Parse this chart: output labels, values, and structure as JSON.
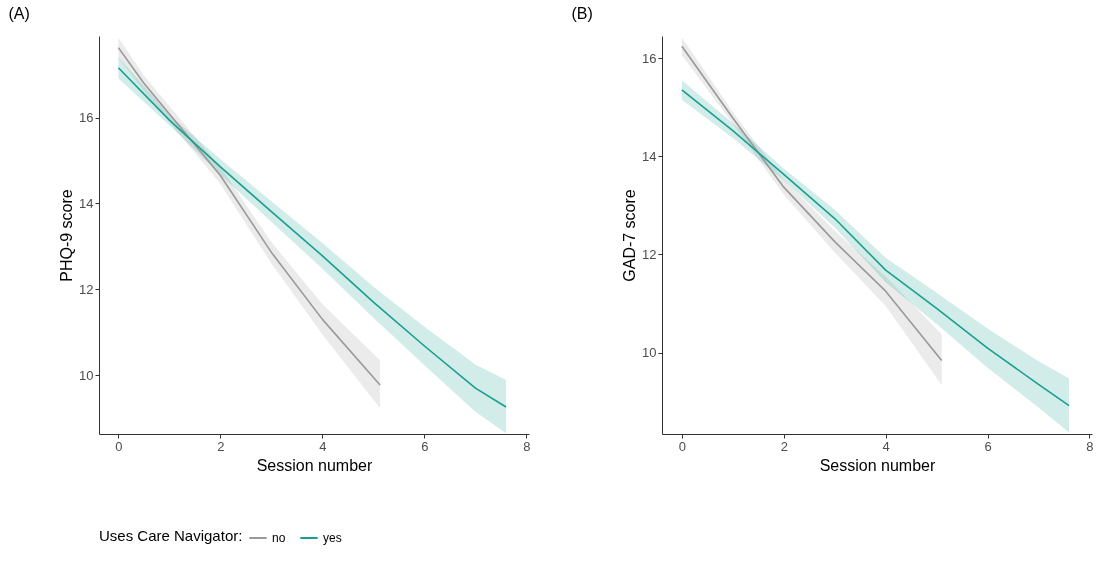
{
  "chart_data": [
    {
      "type": "line",
      "title": "(A)",
      "xlabel": "Session number",
      "ylabel": "PHQ-9 score",
      "xlim": [
        -0.38,
        8.05
      ],
      "ylim": [
        8.63,
        17.9
      ],
      "xticks": [
        0,
        2,
        4,
        6,
        8
      ],
      "yticks": [
        10,
        12,
        14,
        16
      ],
      "grid": false,
      "legend": "bottom",
      "legend_title": "Uses Care Navigator:",
      "series": [
        {
          "name": "no",
          "color": "#999999",
          "x": [
            0,
            0.5,
            2,
            3,
            4,
            5.13
          ],
          "values": [
            17.63,
            16.8,
            14.65,
            12.86,
            11.3,
            9.77
          ],
          "lower": [
            17.4,
            16.62,
            14.45,
            12.6,
            10.95,
            9.23
          ],
          "upper": [
            17.86,
            16.98,
            14.85,
            13.1,
            11.65,
            10.35
          ]
        },
        {
          "name": "yes",
          "color": "#1a9e8f",
          "x": [
            0,
            1,
            2,
            3,
            4,
            5,
            6,
            7,
            7.6
          ],
          "values": [
            17.16,
            15.94,
            14.85,
            13.81,
            12.78,
            11.7,
            10.68,
            9.7,
            9.26
          ],
          "lower": [
            16.91,
            15.82,
            14.67,
            13.57,
            12.48,
            11.34,
            10.23,
            9.15,
            8.65
          ],
          "upper": [
            17.41,
            16.06,
            15.03,
            14.05,
            13.08,
            12.06,
            11.13,
            10.25,
            9.89
          ]
        }
      ]
    },
    {
      "type": "line",
      "title": "(B)",
      "xlabel": "Session number",
      "ylabel": "GAD-7 score",
      "xlim": [
        -0.39,
        8.05
      ],
      "ylim": [
        8.34,
        16.45
      ],
      "xticks": [
        0,
        2,
        4,
        6,
        8
      ],
      "yticks": [
        10,
        12,
        14,
        16
      ],
      "grid": false,
      "series": [
        {
          "color": "#999999",
          "x": [
            0,
            1,
            2,
            3,
            4,
            5.1
          ],
          "values": [
            16.24,
            14.78,
            13.37,
            12.26,
            11.25,
            9.84
          ],
          "lower": [
            16.06,
            14.66,
            13.22,
            12.04,
            10.95,
            9.34
          ],
          "upper": [
            16.42,
            14.9,
            13.52,
            12.48,
            11.55,
            10.37
          ]
        },
        {
          "color": "#1a9e8f",
          "x": [
            0,
            1,
            2,
            3,
            4,
            5,
            6,
            7,
            7.6
          ],
          "values": [
            15.35,
            14.52,
            13.63,
            12.73,
            11.68,
            10.9,
            10.09,
            9.35,
            8.92
          ],
          "lower": [
            15.15,
            14.37,
            13.51,
            12.55,
            11.43,
            10.58,
            9.69,
            8.88,
            8.37
          ],
          "upper": [
            15.55,
            14.67,
            13.75,
            12.91,
            11.93,
            11.22,
            10.49,
            9.82,
            9.47
          ]
        }
      ]
    }
  ]
}
